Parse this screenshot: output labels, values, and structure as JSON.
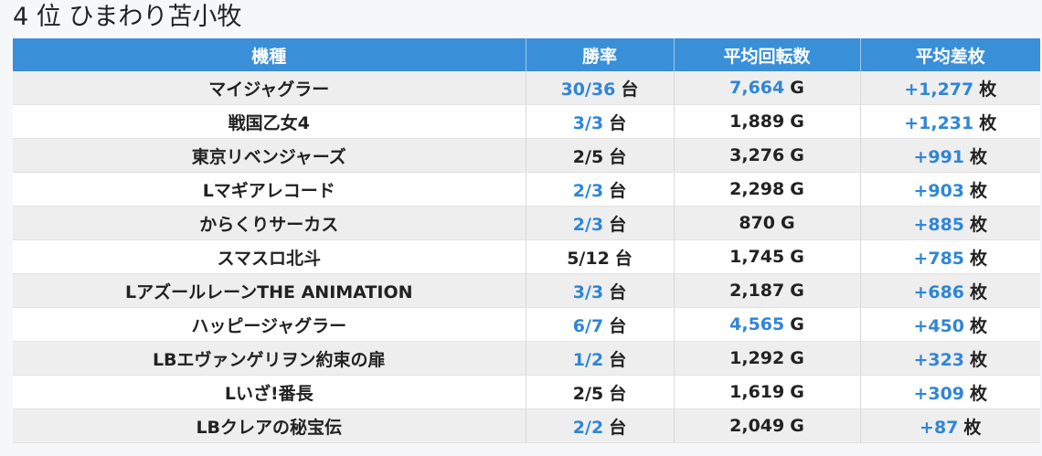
{
  "page": {
    "title": "4 位 ひまわり苫小牧"
  },
  "table": {
    "headers": [
      "機種",
      "勝率",
      "平均回転数",
      "平均差枚"
    ],
    "rows": [
      {
        "model": "マイジャグラー",
        "win": "30/36",
        "win_unit": "台",
        "win_hl": true,
        "spins": "7,664",
        "spins_unit": "G",
        "spins_hl": true,
        "diff": "+1,277",
        "diff_unit": "枚",
        "diff_hl": true
      },
      {
        "model": "戦国乙女4",
        "win": "3/3",
        "win_unit": "台",
        "win_hl": true,
        "spins": "1,889",
        "spins_unit": "G",
        "spins_hl": false,
        "diff": "+1,231",
        "diff_unit": "枚",
        "diff_hl": true
      },
      {
        "model": "東京リベンジャーズ",
        "win": "2/5",
        "win_unit": "台",
        "win_hl": false,
        "spins": "3,276",
        "spins_unit": "G",
        "spins_hl": false,
        "diff": "+991",
        "diff_unit": "枚",
        "diff_hl": true
      },
      {
        "model": "Lマギアレコード",
        "win": "2/3",
        "win_unit": "台",
        "win_hl": true,
        "spins": "2,298",
        "spins_unit": "G",
        "spins_hl": false,
        "diff": "+903",
        "diff_unit": "枚",
        "diff_hl": true
      },
      {
        "model": "からくりサーカス",
        "win": "2/3",
        "win_unit": "台",
        "win_hl": true,
        "spins": "870",
        "spins_unit": "G",
        "spins_hl": false,
        "diff": "+885",
        "diff_unit": "枚",
        "diff_hl": true
      },
      {
        "model": "スマスロ北斗",
        "win": "5/12",
        "win_unit": "台",
        "win_hl": false,
        "spins": "1,745",
        "spins_unit": "G",
        "spins_hl": false,
        "diff": "+785",
        "diff_unit": "枚",
        "diff_hl": true
      },
      {
        "model": "LアズールレーンTHE ANIMATION",
        "win": "3/3",
        "win_unit": "台",
        "win_hl": true,
        "spins": "2,187",
        "spins_unit": "G",
        "spins_hl": false,
        "diff": "+686",
        "diff_unit": "枚",
        "diff_hl": true
      },
      {
        "model": "ハッピージャグラー",
        "win": "6/7",
        "win_unit": "台",
        "win_hl": true,
        "spins": "4,565",
        "spins_unit": "G",
        "spins_hl": true,
        "diff": "+450",
        "diff_unit": "枚",
        "diff_hl": true
      },
      {
        "model": "LBエヴァンゲリヲン約束の扉",
        "win": "1/2",
        "win_unit": "台",
        "win_hl": true,
        "spins": "1,292",
        "spins_unit": "G",
        "spins_hl": false,
        "diff": "+323",
        "diff_unit": "枚",
        "diff_hl": true
      },
      {
        "model": "Lいざ!番長",
        "win": "2/5",
        "win_unit": "台",
        "win_hl": false,
        "spins": "1,619",
        "spins_unit": "G",
        "spins_hl": false,
        "diff": "+309",
        "diff_unit": "枚",
        "diff_hl": true
      },
      {
        "model": "LBクレアの秘宝伝",
        "win": "2/2",
        "win_unit": "台",
        "win_hl": true,
        "spins": "2,049",
        "spins_unit": "G",
        "spins_hl": false,
        "diff": "+87",
        "diff_unit": "枚",
        "diff_hl": true
      }
    ]
  },
  "colors": {
    "header_bg": "#3a8fd9",
    "highlight": "#2f86d6",
    "row_alt": "#eeeeef"
  }
}
